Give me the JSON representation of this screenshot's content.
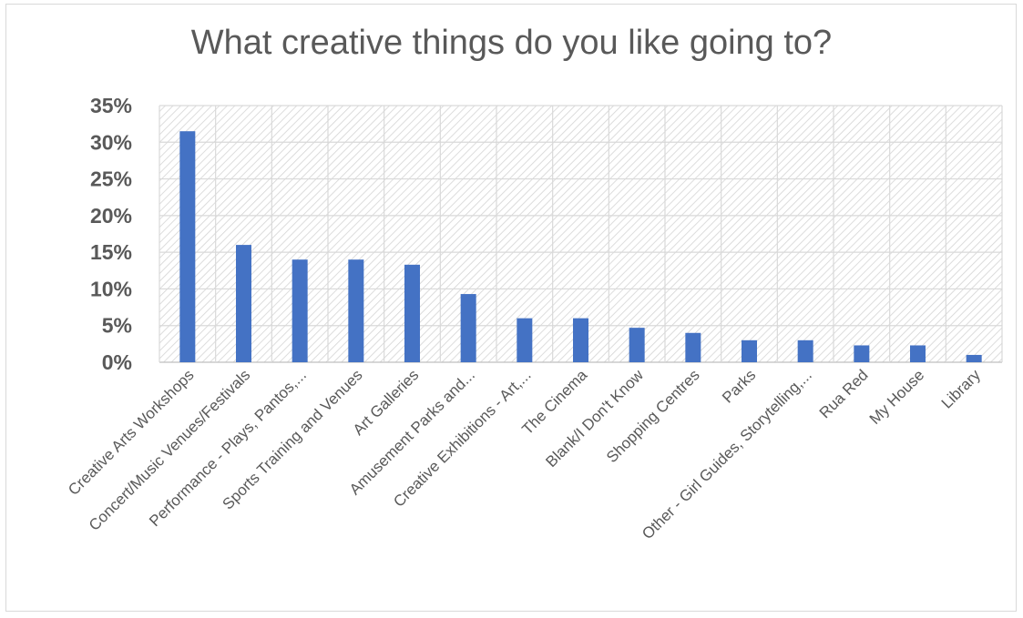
{
  "chart_data": {
    "type": "bar",
    "title": "What creative things do you like going to?",
    "xlabel": "",
    "ylabel": "",
    "categories": [
      "Creative Arts Workshops",
      "Concert/Music Venues/Festivals",
      "Performance - Plays, Pantos,...",
      "Sports Training and Venues",
      "Art Galleries",
      "Amusement Parks and...",
      "Creative Exhibitions - Art,...",
      "The Cinema",
      "Blank/I Don't Know",
      "Shopping Centres",
      "Parks",
      "Other - Girl Guides, Storytelling,...",
      "Rua Red",
      "My House",
      "Library"
    ],
    "values": [
      31.5,
      16.0,
      14.0,
      14.0,
      13.3,
      9.3,
      6.0,
      6.0,
      4.7,
      4.0,
      3.0,
      3.0,
      2.3,
      2.3,
      1.0
    ],
    "ylim": [
      0,
      35
    ],
    "yticks": [
      "0%",
      "5%",
      "10%",
      "15%",
      "20%",
      "25%",
      "30%",
      "35%"
    ],
    "grid": true,
    "legend": "none",
    "bar_color": "#4472c4"
  }
}
